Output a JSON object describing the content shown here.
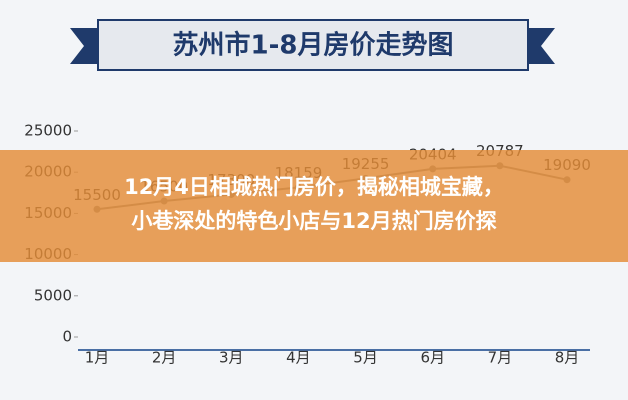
{
  "chart_data": {
    "type": "line",
    "title": "苏州市1-8月房价走势图",
    "categories": [
      "1月",
      "2月",
      "3月",
      "4月",
      "5月",
      "6月",
      "7月",
      "8月"
    ],
    "values": [
      15500,
      16500,
      17300,
      18159,
      19255,
      20404,
      20787,
      19090
    ],
    "color": "#8c8c8c",
    "ylim": [
      0,
      25000
    ],
    "yticks": [
      0,
      5000,
      10000,
      15000,
      20000,
      25000
    ],
    "grid": false
  },
  "overlay": {
    "lines": [
      "12月4日相城热门房价，揭秘相城宝藏，",
      "小巷深处的特色小店与12月热门房价探"
    ]
  }
}
